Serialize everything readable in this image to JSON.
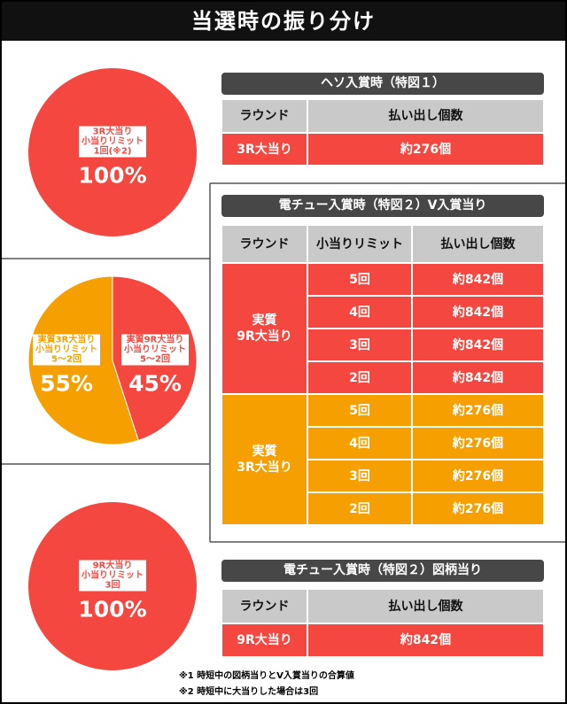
{
  "header": {
    "title": "当選時の振り分け"
  },
  "pies": [
    {
      "slices": [
        {
          "label_lines": [
            "3R大当り",
            "小当りリミット",
            "1回(※2)"
          ],
          "value": 100,
          "value_label": "100%",
          "color": "#f4473f"
        }
      ]
    },
    {
      "slices": [
        {
          "label_lines": [
            "実質3R大当り",
            "小当りリミット",
            "5～2回"
          ],
          "value": 55,
          "value_label": "55%",
          "color": "#f5a000"
        },
        {
          "label_lines": [
            "実質9R大当り",
            "小当りリミット",
            "5～2回"
          ],
          "value": 45,
          "value_label": "45%",
          "color": "#f4473f"
        }
      ]
    },
    {
      "slices": [
        {
          "label_lines": [
            "9R大当り",
            "小当りリミット",
            "3回"
          ],
          "value": 100,
          "value_label": "100%",
          "color": "#f4473f"
        }
      ]
    }
  ],
  "tables": [
    {
      "banner": "ヘソ入賞時（特図１）",
      "columns": [
        "ラウンド",
        "払い出し個数"
      ],
      "groups": [
        {
          "round_lines": [
            "3R大当り"
          ],
          "color": "#f4473f",
          "rows": [
            [
              "約276個"
            ]
          ]
        }
      ]
    },
    {
      "banner": "電チュー入賞時（特図２）V入賞当り",
      "columns": [
        "ラウンド",
        "小当りリミット",
        "払い出し個数"
      ],
      "groups": [
        {
          "round_lines": [
            "実質",
            "9R大当り"
          ],
          "color": "#f4473f",
          "rows": [
            [
              "5回",
              "約842個"
            ],
            [
              "4回",
              "約842個"
            ],
            [
              "3回",
              "約842個"
            ],
            [
              "2回",
              "約842個"
            ]
          ]
        },
        {
          "round_lines": [
            "実質",
            "3R大当り"
          ],
          "color": "#f5a000",
          "rows": [
            [
              "5回",
              "約276個"
            ],
            [
              "4回",
              "約276個"
            ],
            [
              "3回",
              "約276個"
            ],
            [
              "2回",
              "約276個"
            ]
          ]
        }
      ]
    },
    {
      "banner": "電チュー入賞時（特図２）図柄当り",
      "columns": [
        "ラウンド",
        "払い出し個数"
      ],
      "groups": [
        {
          "round_lines": [
            "9R大当り"
          ],
          "color": "#f4473f",
          "rows": [
            [
              "約842個"
            ]
          ]
        }
      ]
    }
  ],
  "notes": [
    "※1 時短中の図柄当りとV入賞当りの合算値",
    "※2 時短中に大当りした場合は3回"
  ]
}
